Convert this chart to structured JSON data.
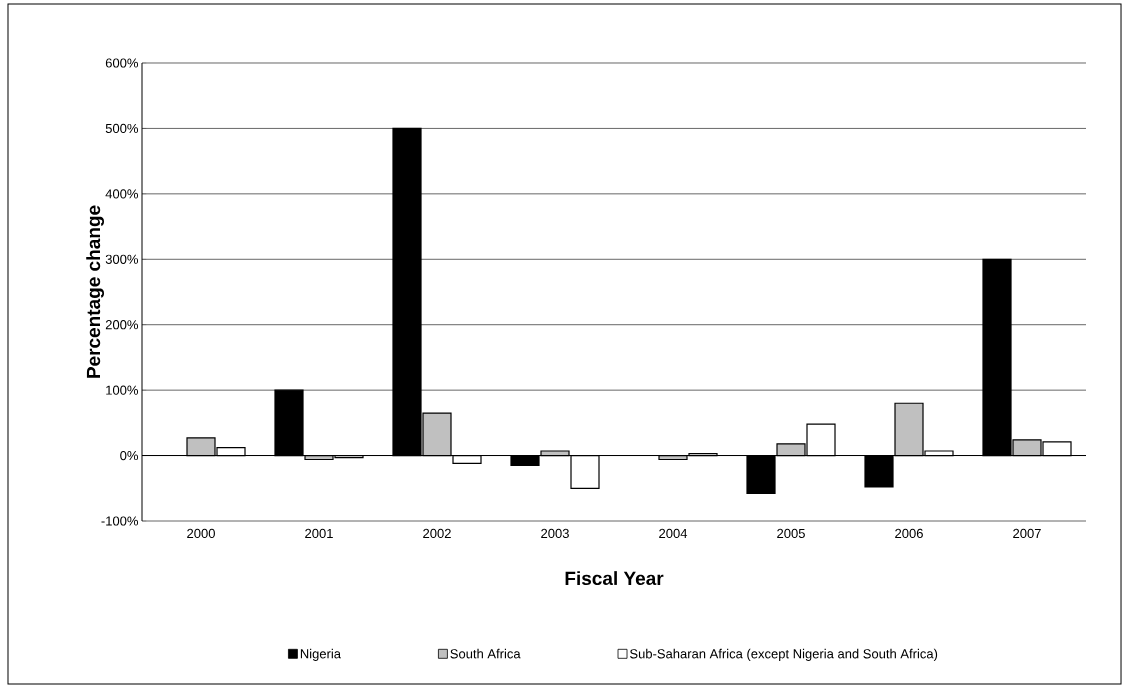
{
  "chart_data": {
    "type": "bar",
    "xlabel": "Fiscal Year",
    "ylabel": "Percentage change",
    "categories": [
      "2000",
      "2001",
      "2002",
      "2003",
      "2004",
      "2005",
      "2006",
      "2007"
    ],
    "series": [
      {
        "name": "Nigeria",
        "color": "#000000",
        "values": [
          null,
          100,
          500,
          -15,
          null,
          -58,
          -48,
          300
        ]
      },
      {
        "name": "South Africa",
        "color": "#c0c0c0",
        "values": [
          27,
          -6,
          65,
          7,
          -6,
          18,
          80,
          24
        ]
      },
      {
        "name": "Sub-Saharan Africa (except Nigeria and South Africa)",
        "color": "#ffffff",
        "values": [
          12,
          -3,
          -12,
          -50,
          3,
          48,
          7,
          21
        ]
      }
    ],
    "ylim": [
      -100,
      600
    ],
    "yticks": [
      {
        "value": -100,
        "label": "-100%"
      },
      {
        "value": 0,
        "label": "0%"
      },
      {
        "value": 100,
        "label": "100%"
      },
      {
        "value": 200,
        "label": "200%"
      },
      {
        "value": 300,
        "label": "300%"
      },
      {
        "value": 400,
        "label": "400%"
      },
      {
        "value": 500,
        "label": "500%"
      },
      {
        "value": 600,
        "label": "600%"
      }
    ],
    "grid": "y",
    "legend": "bottom"
  }
}
